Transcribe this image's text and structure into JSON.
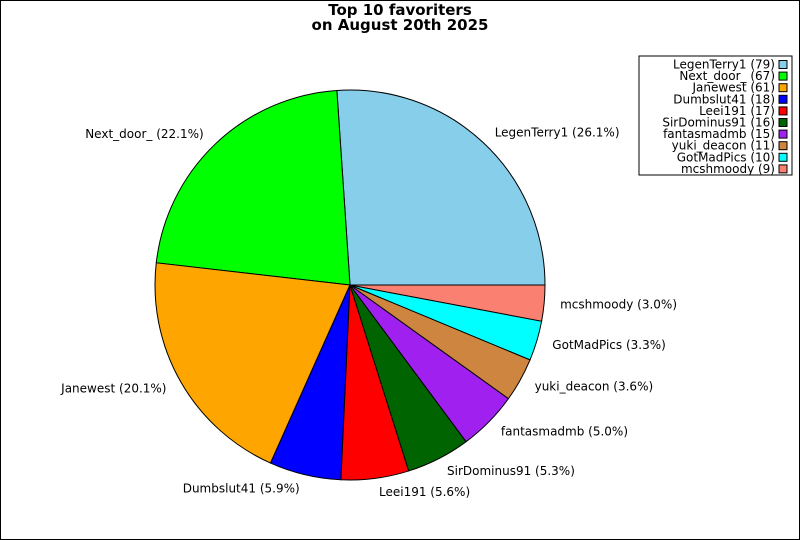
{
  "chart_data": {
    "type": "pie",
    "title_lines": [
      "Top 10 favoriters",
      "on August 20th 2025"
    ],
    "legend_placement": "top-right",
    "slices": [
      {
        "name": "LegenTerry1",
        "value": 79,
        "percent_label": "LegenTerry1 (26.1%)",
        "legend_label": "LegenTerry1 (79)",
        "color": "#87ceeb"
      },
      {
        "name": "Next_door_",
        "value": 67,
        "percent_label": "Next_door_ (22.1%)",
        "legend_label": "Next_door_ (67)",
        "color": "#00ff00"
      },
      {
        "name": "Janewest",
        "value": 61,
        "percent_label": "Janewest (20.1%)",
        "legend_label": "Janewest (61)",
        "color": "#ffa500"
      },
      {
        "name": "Dumbslut41",
        "value": 18,
        "percent_label": "Dumbslut41 (5.9%)",
        "legend_label": "Dumbslut41 (18)",
        "color": "#0000ff"
      },
      {
        "name": "Leei191",
        "value": 17,
        "percent_label": "Leei191 (5.6%)",
        "legend_label": "Leei191 (17)",
        "color": "#ff0000"
      },
      {
        "name": "SirDominus91",
        "value": 16,
        "percent_label": "SirDominus91 (5.3%)",
        "legend_label": "SirDominus91 (16)",
        "color": "#006400"
      },
      {
        "name": "fantasmadmb",
        "value": 15,
        "percent_label": "fantasmadmb (5.0%)",
        "legend_label": "fantasmadmb (15)",
        "color": "#a020f0"
      },
      {
        "name": "yuki_deacon",
        "value": 11,
        "percent_label": "yuki_deacon (3.6%)",
        "legend_label": "yuki_deacon (11)",
        "color": "#cd853f"
      },
      {
        "name": "GotMadPics",
        "value": 10,
        "percent_label": "GotMadPics (3.3%)",
        "legend_label": "GotMadPics (10)",
        "color": "#00ffff"
      },
      {
        "name": "mcshmoody",
        "value": 9,
        "percent_label": "mcshmoody (3.0%)",
        "legend_label": "mcshmoody (9)",
        "color": "#fa8072"
      }
    ]
  }
}
